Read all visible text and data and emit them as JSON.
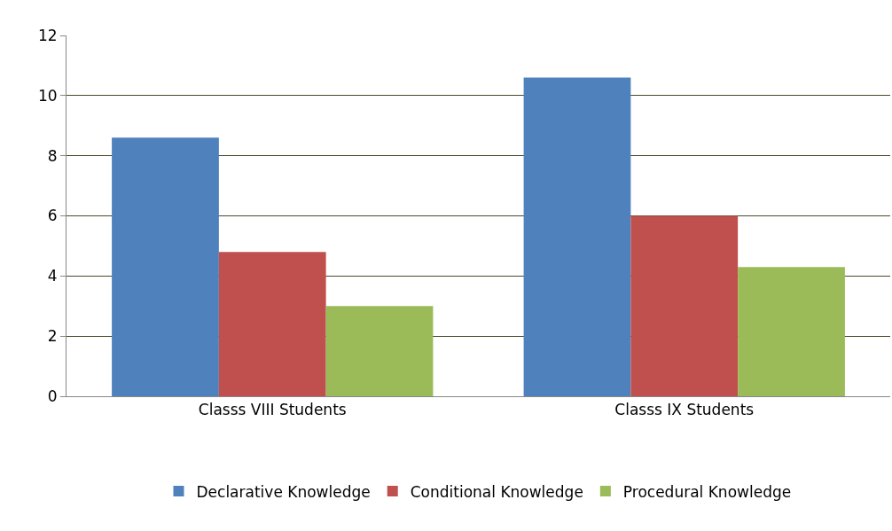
{
  "chart_data": {
    "type": "bar",
    "categories": [
      "Classs VIII Students",
      "Classs IX Students"
    ],
    "series": [
      {
        "name": "Declarative Knowledge",
        "color": "#4f81bd",
        "values": [
          8.6,
          10.6
        ]
      },
      {
        "name": "Conditional Knowledge",
        "color": "#c0504d",
        "values": [
          4.8,
          6.0
        ]
      },
      {
        "name": "Procedural Knowledge",
        "color": "#9bbb59",
        "values": [
          3.0,
          4.3
        ]
      }
    ],
    "ylim": [
      0,
      12
    ],
    "yticks": [
      0,
      2,
      4,
      6,
      8,
      10,
      12
    ],
    "grid": "y",
    "legend": "bottom"
  }
}
